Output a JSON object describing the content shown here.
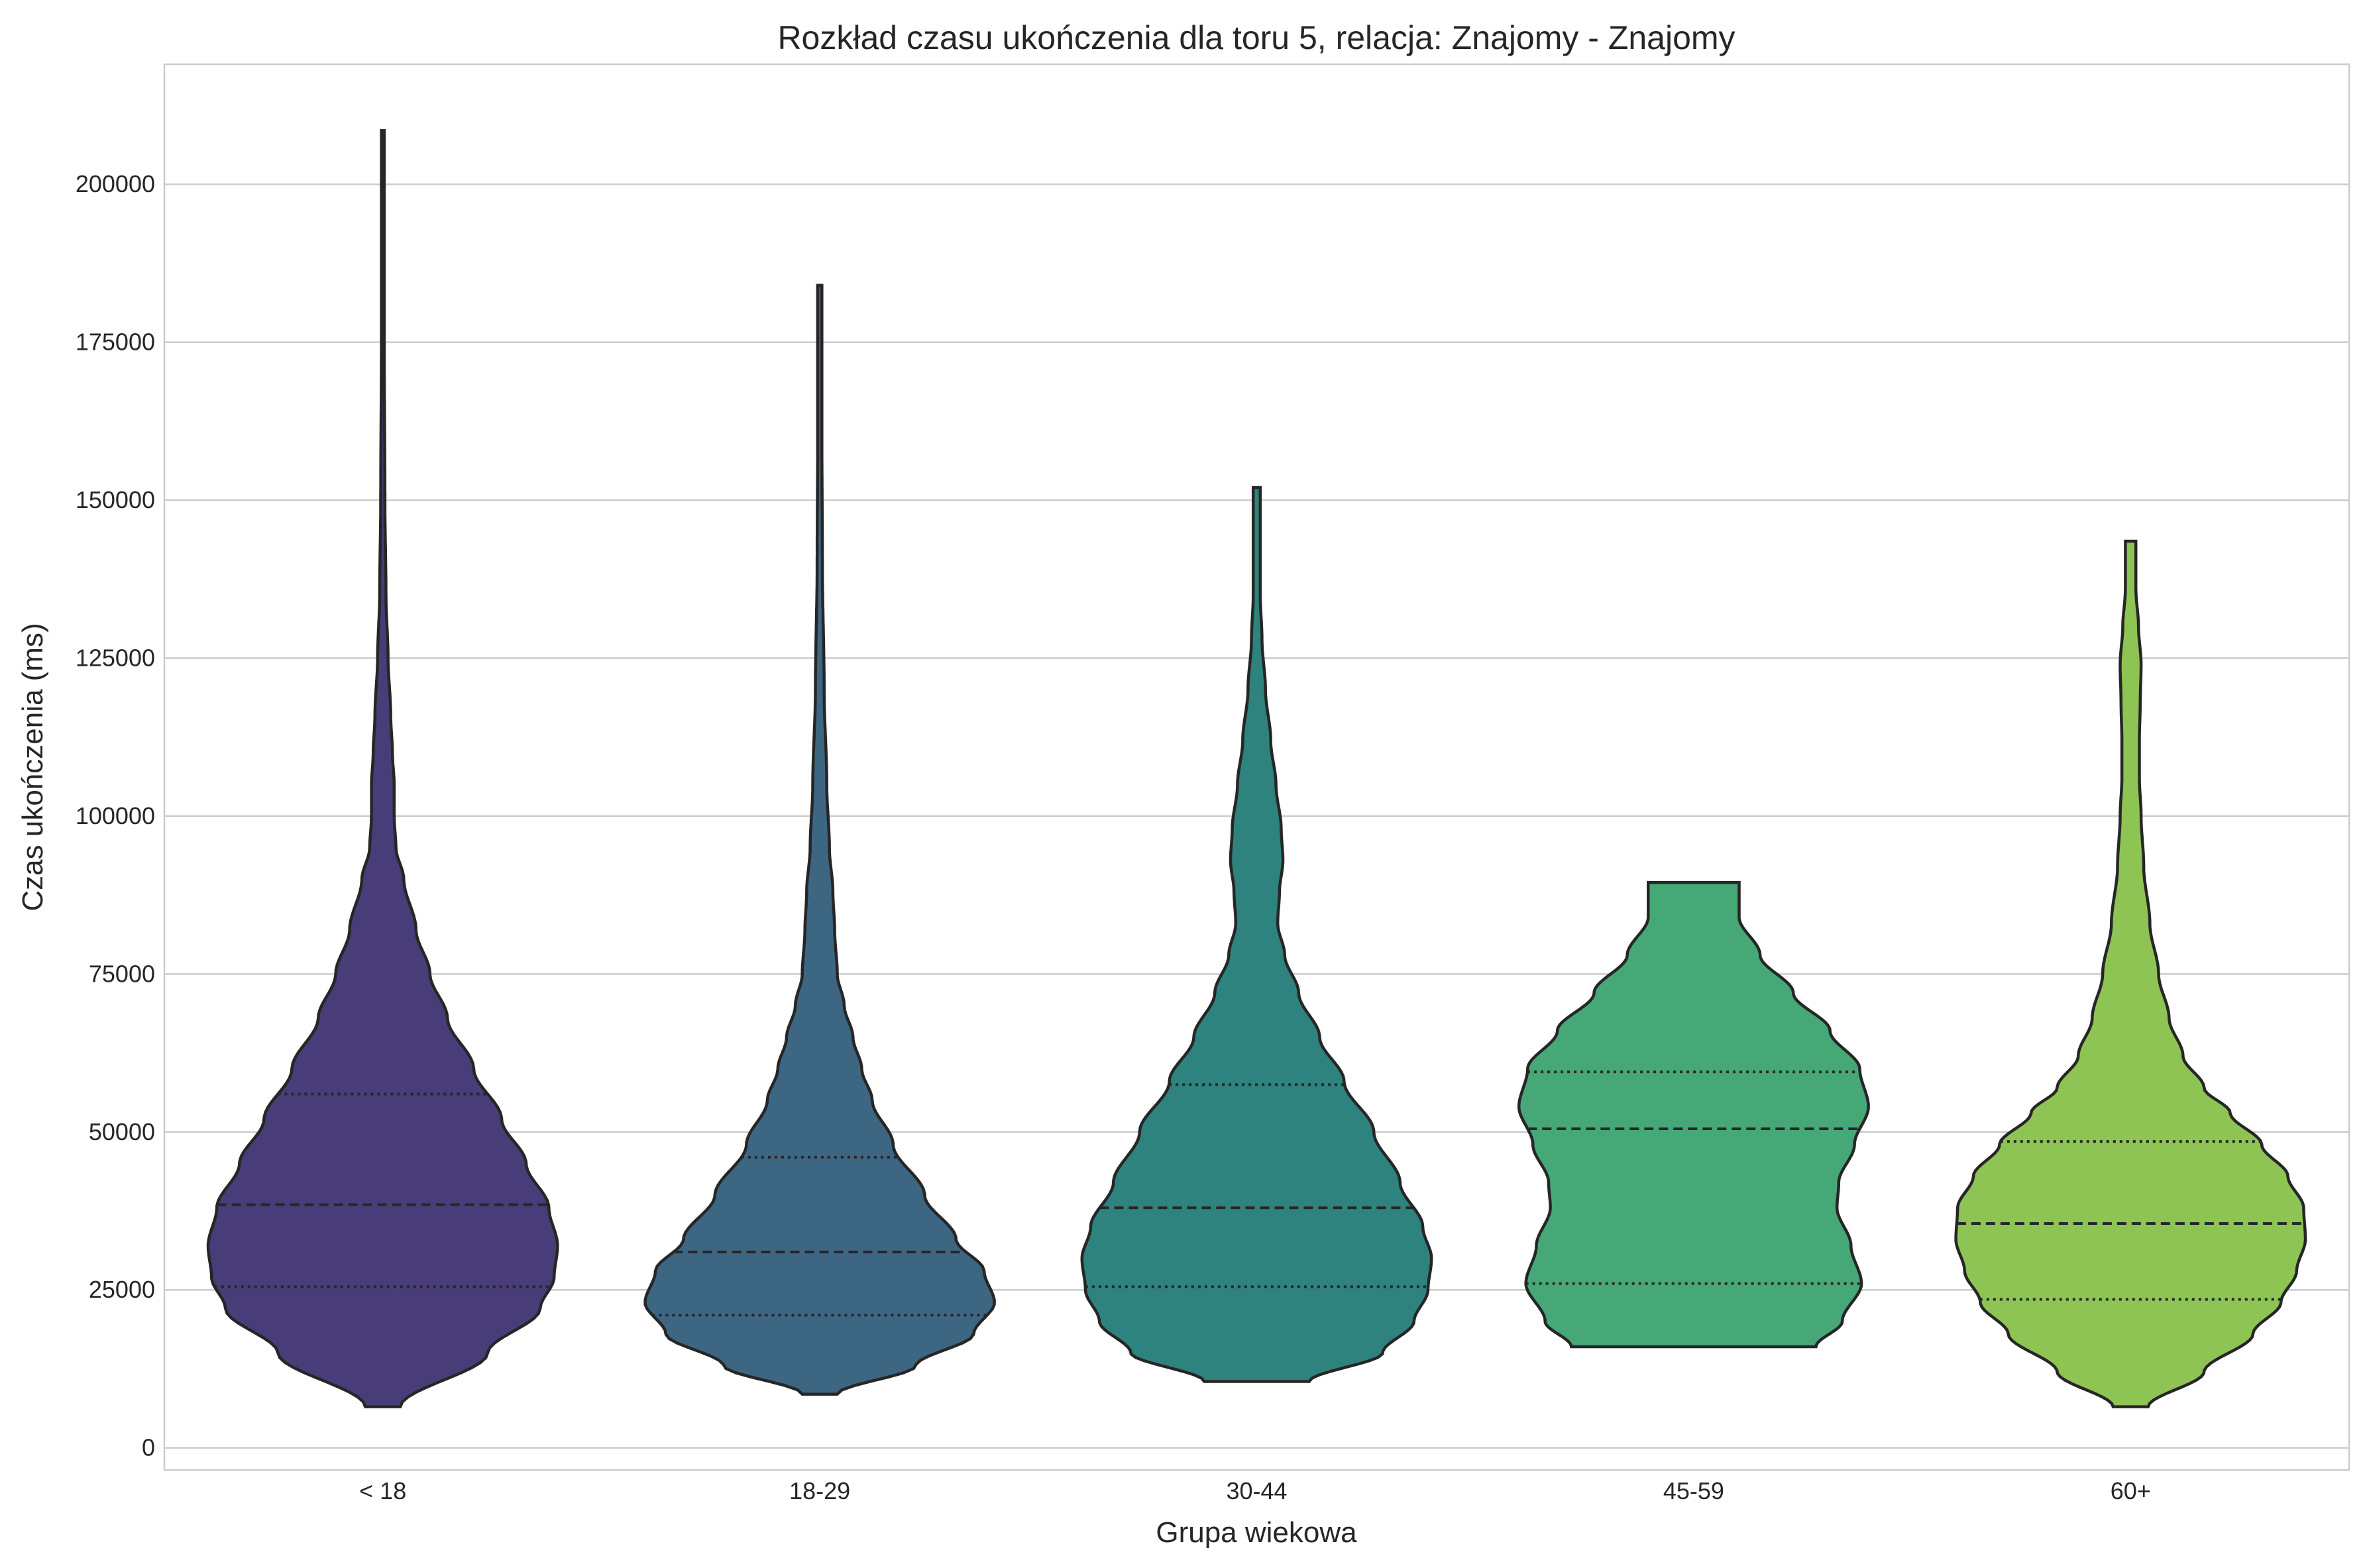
{
  "chart_data": {
    "type": "violin",
    "title": "Rozkład czasu ukończenia dla toru 5, relacja: Znajomy - Znajomy",
    "xlabel": "Grupa wiekowa",
    "ylabel": "Czas ukończenia (ms)",
    "ylim": [
      -3500,
      219000
    ],
    "yticks": [
      0,
      25000,
      50000,
      75000,
      100000,
      125000,
      150000,
      175000,
      200000
    ],
    "ytick_labels": [
      "0",
      "25000",
      "50000",
      "75000",
      "100000",
      "125000",
      "150000",
      "175000",
      "200000"
    ],
    "grid": "horizontal",
    "categories": [
      "< 18",
      "18-29",
      "30-44",
      "45-59",
      "60+"
    ],
    "groups": [
      {
        "label": "< 18",
        "color": "#483d78",
        "min": 6500,
        "q1": 25500,
        "median": 38500,
        "q3": 56000,
        "max": 208500,
        "density": [
          [
            6500,
            0.1
          ],
          [
            15000,
            0.6
          ],
          [
            22000,
            0.9
          ],
          [
            27000,
            0.98
          ],
          [
            32000,
            1.0
          ],
          [
            38000,
            0.95
          ],
          [
            45000,
            0.82
          ],
          [
            52000,
            0.68
          ],
          [
            60000,
            0.52
          ],
          [
            68000,
            0.37
          ],
          [
            75000,
            0.27
          ],
          [
            82000,
            0.19
          ],
          [
            90000,
            0.12
          ],
          [
            95000,
            0.075
          ],
          [
            100000,
            0.065
          ],
          [
            105000,
            0.065
          ],
          [
            110000,
            0.055
          ],
          [
            116000,
            0.045
          ],
          [
            125000,
            0.03
          ],
          [
            135000,
            0.018
          ],
          [
            150000,
            0.012
          ],
          [
            175000,
            0.008
          ],
          [
            208500,
            0.008
          ]
        ]
      },
      {
        "label": "18-29",
        "color": "#3d6683",
        "min": 8500,
        "q1": 21000,
        "median": 31000,
        "q3": 46000,
        "max": 184000,
        "density": [
          [
            8500,
            0.1
          ],
          [
            13000,
            0.55
          ],
          [
            18000,
            0.88
          ],
          [
            23000,
            1.0
          ],
          [
            28000,
            0.94
          ],
          [
            33000,
            0.78
          ],
          [
            40000,
            0.6
          ],
          [
            48000,
            0.42
          ],
          [
            55000,
            0.3
          ],
          [
            60000,
            0.24
          ],
          [
            65000,
            0.19
          ],
          [
            70000,
            0.14
          ],
          [
            75000,
            0.1
          ],
          [
            82000,
            0.085
          ],
          [
            88000,
            0.075
          ],
          [
            95000,
            0.055
          ],
          [
            105000,
            0.04
          ],
          [
            120000,
            0.025
          ],
          [
            140000,
            0.015
          ],
          [
            160000,
            0.012
          ],
          [
            184000,
            0.012
          ]
        ]
      },
      {
        "label": "30-44",
        "color": "#2e837e",
        "min": 10500,
        "q1": 25500,
        "median": 38000,
        "q3": 57500,
        "max": 152000,
        "density": [
          [
            10500,
            0.3
          ],
          [
            15000,
            0.72
          ],
          [
            20000,
            0.9
          ],
          [
            25000,
            0.98
          ],
          [
            30000,
            1.0
          ],
          [
            35000,
            0.95
          ],
          [
            42000,
            0.82
          ],
          [
            50000,
            0.67
          ],
          [
            58000,
            0.5
          ],
          [
            65000,
            0.36
          ],
          [
            72000,
            0.24
          ],
          [
            78000,
            0.16
          ],
          [
            83000,
            0.12
          ],
          [
            88000,
            0.13
          ],
          [
            93000,
            0.15
          ],
          [
            98000,
            0.14
          ],
          [
            105000,
            0.11
          ],
          [
            112000,
            0.08
          ],
          [
            120000,
            0.05
          ],
          [
            128000,
            0.03
          ],
          [
            135000,
            0.02
          ],
          [
            152000,
            0.02
          ]
        ]
      },
      {
        "label": "45-59",
        "color": "#46a877",
        "min": 16000,
        "q1": 26000,
        "median": 50500,
        "q3": 59500,
        "max": 89500,
        "density": [
          [
            16000,
            0.7
          ],
          [
            20000,
            0.85
          ],
          [
            26000,
            0.96
          ],
          [
            32000,
            0.9
          ],
          [
            38000,
            0.82
          ],
          [
            42000,
            0.83
          ],
          [
            48000,
            0.92
          ],
          [
            54000,
            1.0
          ],
          [
            60000,
            0.95
          ],
          [
            66000,
            0.78
          ],
          [
            72000,
            0.57
          ],
          [
            78000,
            0.38
          ],
          [
            84000,
            0.26
          ],
          [
            89500,
            0.26
          ]
        ]
      },
      {
        "label": "60+",
        "color": "#8ec453",
        "min": 6500,
        "q1": 23500,
        "median": 35500,
        "q3": 48500,
        "max": 143500,
        "density": [
          [
            6500,
            0.1
          ],
          [
            12000,
            0.42
          ],
          [
            18000,
            0.7
          ],
          [
            23000,
            0.86
          ],
          [
            28000,
            0.95
          ],
          [
            33000,
            1.0
          ],
          [
            38000,
            0.99
          ],
          [
            43000,
            0.9
          ],
          [
            48000,
            0.75
          ],
          [
            53000,
            0.57
          ],
          [
            57000,
            0.42
          ],
          [
            62000,
            0.3
          ],
          [
            68000,
            0.22
          ],
          [
            75000,
            0.16
          ],
          [
            83000,
            0.11
          ],
          [
            92000,
            0.075
          ],
          [
            100000,
            0.06
          ],
          [
            106000,
            0.05
          ],
          [
            112000,
            0.05
          ],
          [
            118000,
            0.055
          ],
          [
            124000,
            0.06
          ],
          [
            130000,
            0.045
          ],
          [
            136000,
            0.03
          ],
          [
            143500,
            0.03
          ]
        ]
      }
    ]
  }
}
